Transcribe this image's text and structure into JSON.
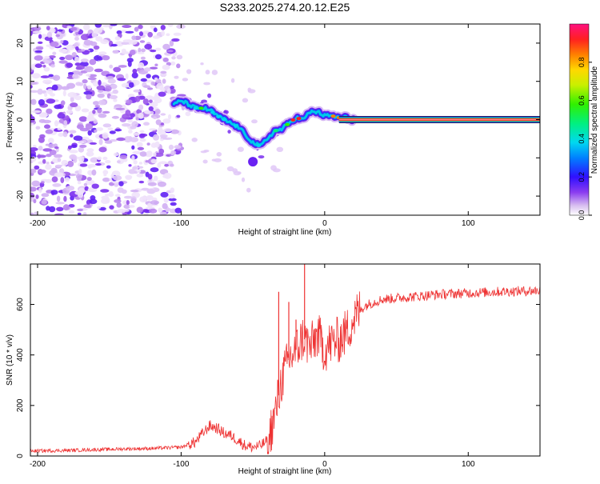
{
  "title": "S233.2025.274.20.12.E25",
  "chart_data": [
    {
      "type": "heatmap",
      "title": "S233.2025.274.20.12.E25",
      "xlabel": "Height of straight line (km)",
      "ylabel": "Frequency (Hz)",
      "xlim": [
        -205,
        150
      ],
      "ylim": [
        -25,
        25
      ],
      "xticks": [
        -200,
        -100,
        0,
        100
      ],
      "yticks": [
        -20,
        -10,
        0,
        10,
        20
      ],
      "colorbar": {
        "label": "Normalized spectral amplitude",
        "range": [
          0.0,
          1.0
        ],
        "ticks": [
          0.0,
          0.2,
          0.4,
          0.6,
          0.8
        ]
      },
      "ridge": {
        "description": "frequency centre of the dominant signal",
        "x": [
          -105,
          -100,
          -95,
          -90,
          -85,
          -80,
          -75,
          -70,
          -65,
          -60,
          -55,
          -50,
          -45,
          -40,
          -35,
          -30,
          -25,
          -20,
          -15,
          -10,
          -5,
          0,
          5,
          10,
          15,
          20,
          25,
          150
        ],
        "y": [
          4,
          5,
          4,
          3,
          3,
          2.5,
          1,
          0,
          -1,
          -2,
          -4,
          -6,
          -7,
          -5,
          -3,
          -2.5,
          -1,
          0.5,
          0,
          2,
          2,
          1,
          1,
          0.5,
          0.5,
          0,
          0,
          0
        ]
      },
      "carrier": {
        "freq": 0,
        "x_start": 10,
        "x_end": 150
      }
    },
    {
      "type": "line",
      "xlabel": "Height of straight line (km)",
      "ylabel": "SNR (10 * v/v)",
      "xlim": [
        -205,
        150
      ],
      "ylim": [
        0,
        760
      ],
      "xticks": [
        -200,
        -100,
        0,
        100
      ],
      "yticks": [
        0,
        200,
        400,
        600
      ],
      "series": [
        {
          "name": "SNR",
          "color": "#ee3333",
          "x": [
            -205,
            -180,
            -160,
            -140,
            -120,
            -100,
            -90,
            -85,
            -80,
            -75,
            -70,
            -65,
            -60,
            -55,
            -50,
            -45,
            -40,
            -35,
            -30,
            -25,
            -20,
            -15,
            -10,
            -5,
            0,
            5,
            10,
            15,
            20,
            25,
            30,
            40,
            50,
            60,
            80,
            100,
            120,
            150
          ],
          "y": [
            20,
            22,
            25,
            28,
            30,
            35,
            55,
            90,
            120,
            110,
            90,
            80,
            60,
            40,
            35,
            40,
            60,
            150,
            300,
            380,
            420,
            470,
            430,
            480,
            420,
            450,
            460,
            490,
            540,
            580,
            600,
            620,
            625,
            630,
            640,
            645,
            650,
            655
          ]
        }
      ],
      "spikes": [
        {
          "x": -32,
          "y": 650
        },
        {
          "x": -25,
          "y": 610
        },
        {
          "x": -14,
          "y": 760
        },
        {
          "x": -20,
          "y": 540
        }
      ]
    }
  ]
}
